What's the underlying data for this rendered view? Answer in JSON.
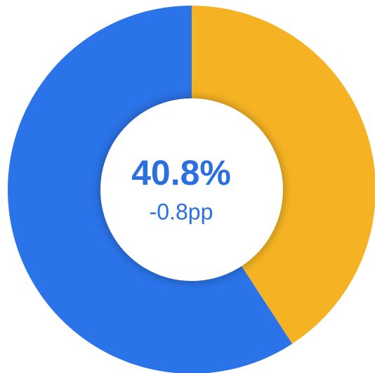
{
  "chart_data": {
    "type": "donut",
    "categories": [
      null,
      null
    ],
    "values": [
      40.8,
      59.2
    ],
    "value_labels": [
      "40.8%",
      null
    ],
    "colors": [
      "#f5b323",
      "#2b73e8"
    ],
    "subtitle": "-0.8pp"
  }
}
